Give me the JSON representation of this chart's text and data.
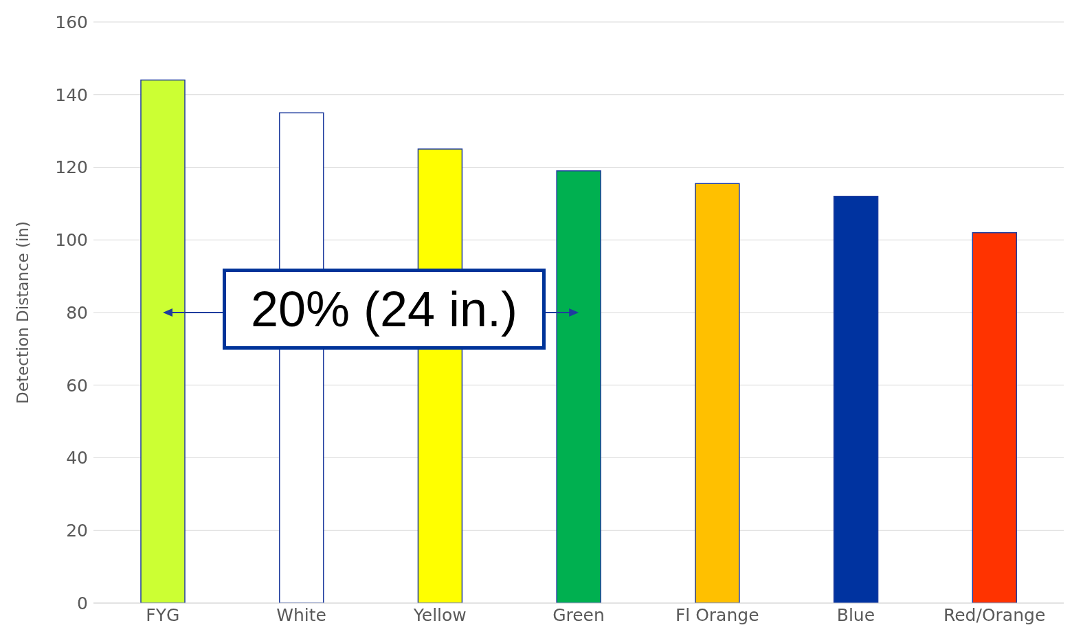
{
  "chart_data": {
    "type": "bar",
    "ylabel": "Detection Distance (in)",
    "categories": [
      "FYG",
      "White",
      "Yellow",
      "Green",
      "Fl Orange",
      "Blue",
      "Red/Orange"
    ],
    "values": [
      144,
      135,
      125,
      119,
      115.5,
      112,
      102
    ],
    "colors": [
      "#ccff33",
      "#ffffff",
      "#ffff00",
      "#00b050",
      "#ffc000",
      "#0033a0",
      "#ff3300"
    ],
    "ylim": [
      0,
      160
    ],
    "yticks": [
      0,
      20,
      40,
      60,
      80,
      100,
      120,
      140,
      160
    ],
    "grid": "y",
    "legend": false,
    "annotations": [
      "20% (24 in.)"
    ]
  }
}
